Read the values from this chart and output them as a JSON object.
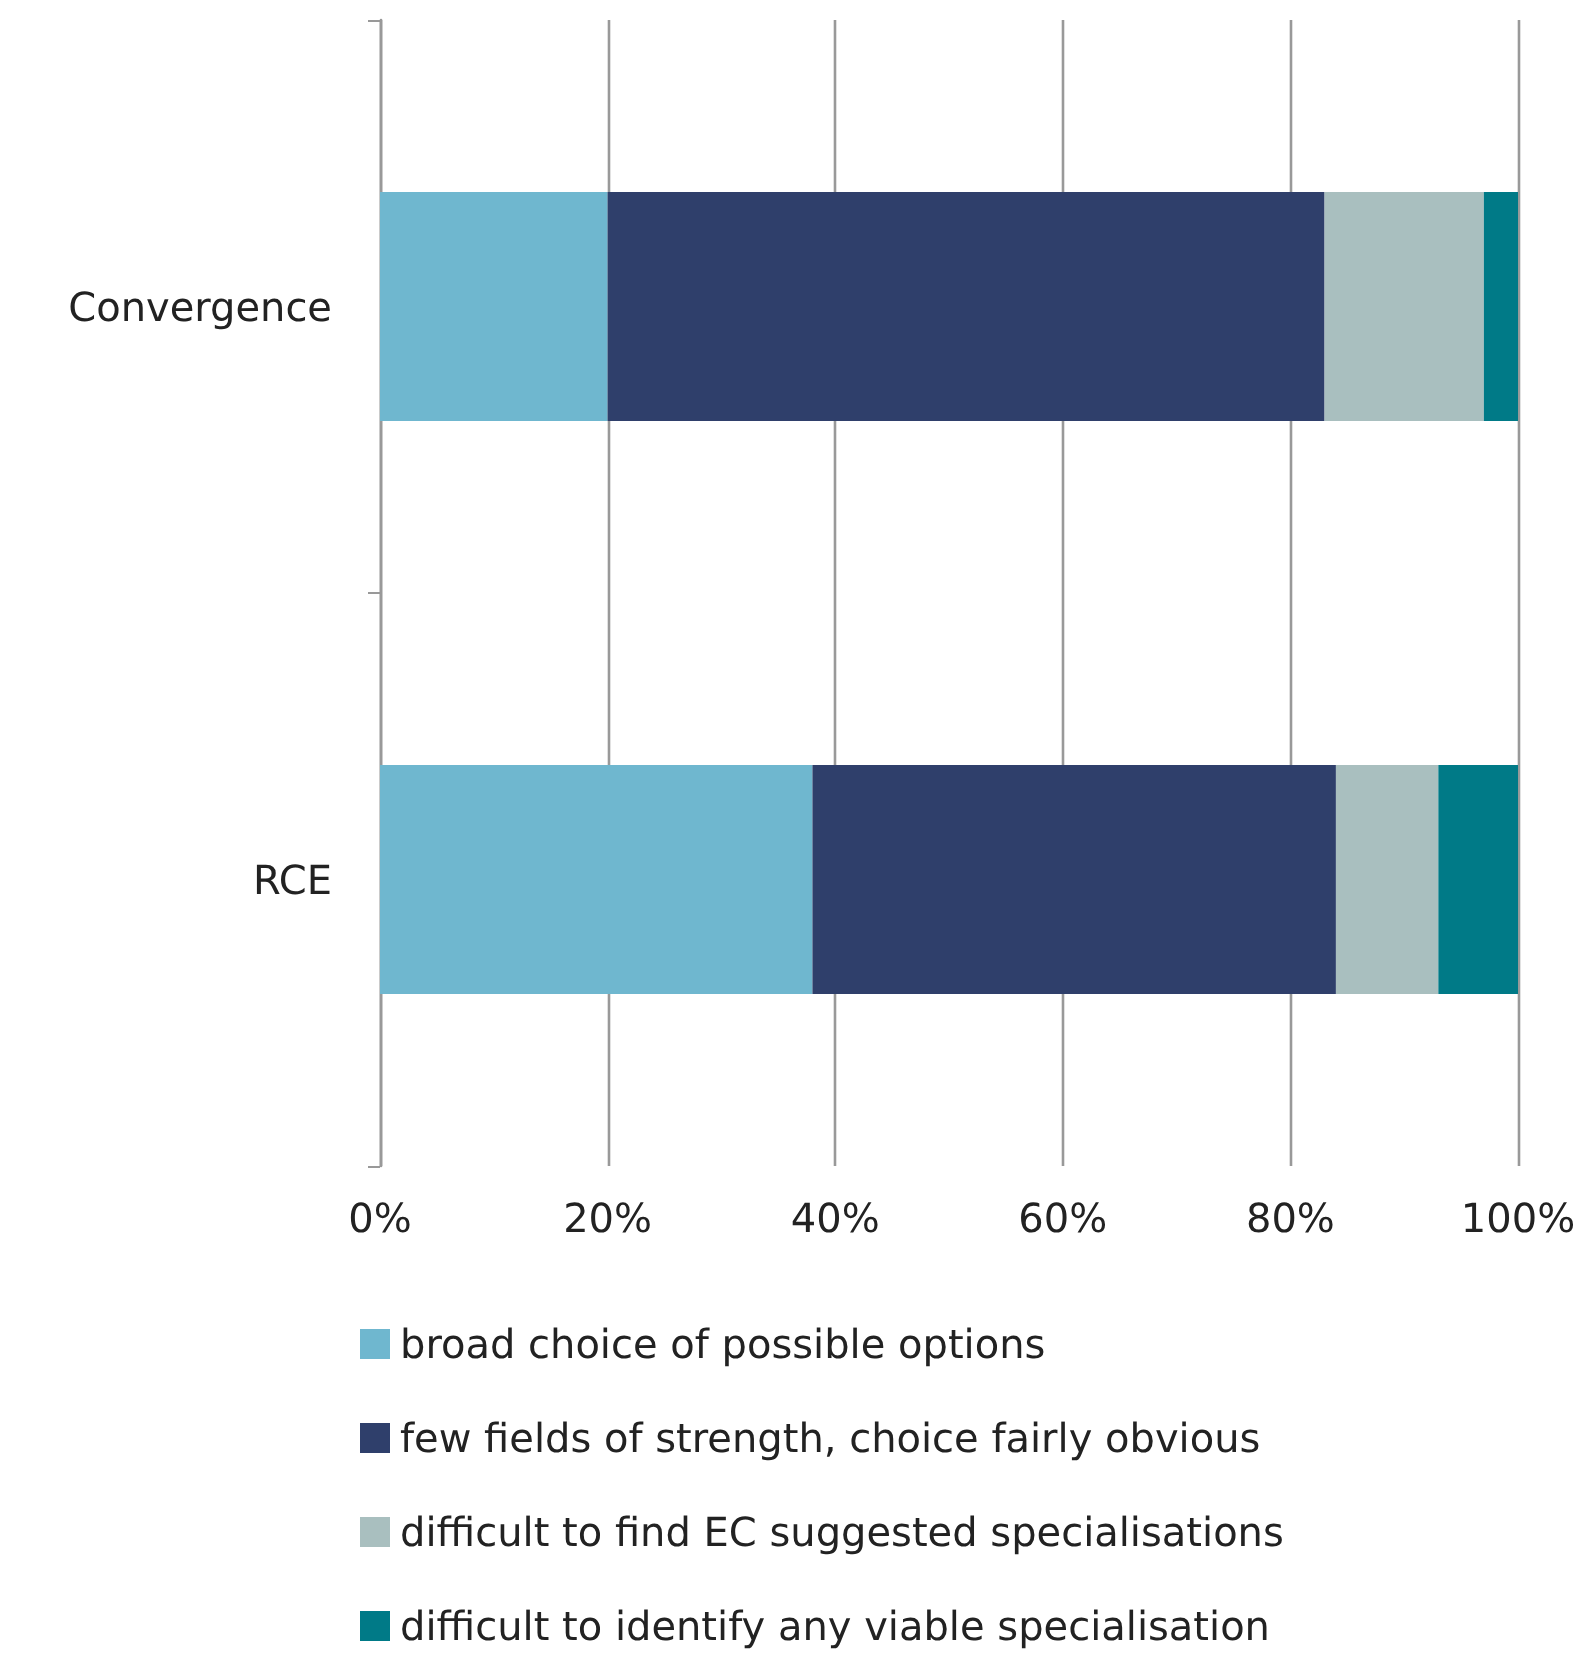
{
  "chart_data": {
    "type": "bar",
    "orientation": "horizontal",
    "stacked": true,
    "categories": [
      "Convergence",
      "RCE"
    ],
    "series": [
      {
        "name": "broad choice of possible options",
        "color": "#6fb7cf",
        "values": [
          20,
          38
        ]
      },
      {
        "name": "few fields of strength, choice fairly obvious",
        "color": "#2f3f6b",
        "values": [
          63,
          46
        ]
      },
      {
        "name": "difficult to find EC suggested specialisations",
        "color": "#a9bfbf",
        "values": [
          14,
          9
        ]
      },
      {
        "name": "difficult to identify any viable specialisation",
        "color": "#007a87",
        "values": [
          3,
          7
        ]
      }
    ],
    "xlim": [
      0,
      100
    ],
    "xticks": [
      {
        "value": 0,
        "label": "0%"
      },
      {
        "value": 20,
        "label": "20%"
      },
      {
        "value": 40,
        "label": "40%"
      },
      {
        "value": 60,
        "label": "60%"
      },
      {
        "value": 80,
        "label": "80%"
      },
      {
        "value": 100,
        "label": "100%"
      }
    ],
    "grid": "x",
    "legend": "bottom"
  }
}
